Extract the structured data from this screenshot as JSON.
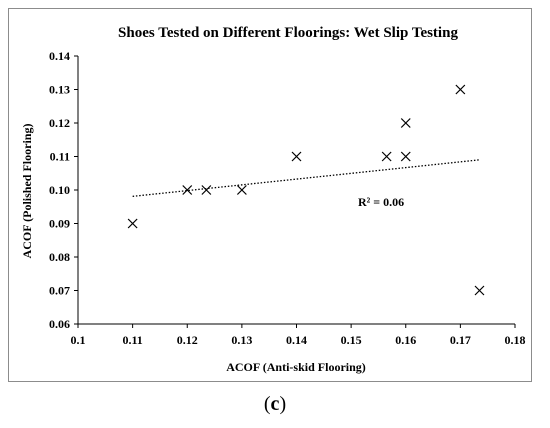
{
  "chart_data": {
    "type": "scatter",
    "title": "Shoes Tested on Different Floorings: Wet Slip Testing",
    "xlabel": "ACOF (Anti-skid Flooring)",
    "ylabel": "ACOF (Polished Flooring)",
    "xlim": [
      0.1,
      0.18
    ],
    "ylim": [
      0.06,
      0.14
    ],
    "xticks": [
      "0.1",
      "0.11",
      "0.12",
      "0.13",
      "0.14",
      "0.15",
      "0.16",
      "0.17",
      "0.18"
    ],
    "yticks": [
      "0.06",
      "0.07",
      "0.08",
      "0.09",
      "0.10",
      "0.11",
      "0.12",
      "0.13",
      "0.14"
    ],
    "grid": false,
    "marker": "x",
    "points": [
      {
        "x": 0.11,
        "y": 0.09
      },
      {
        "x": 0.12,
        "y": 0.1
      },
      {
        "x": 0.1235,
        "y": 0.1
      },
      {
        "x": 0.13,
        "y": 0.1
      },
      {
        "x": 0.14,
        "y": 0.11
      },
      {
        "x": 0.1565,
        "y": 0.11
      },
      {
        "x": 0.16,
        "y": 0.11
      },
      {
        "x": 0.16,
        "y": 0.12
      },
      {
        "x": 0.17,
        "y": 0.13
      },
      {
        "x": 0.1735,
        "y": 0.07
      }
    ],
    "trendline": {
      "type": "linear",
      "style": "dotted",
      "x_range": [
        0.11,
        0.1735
      ]
    },
    "annotation": "R² = 0.06"
  },
  "caption": {
    "open": "(",
    "letter": "c",
    "close": ")"
  }
}
